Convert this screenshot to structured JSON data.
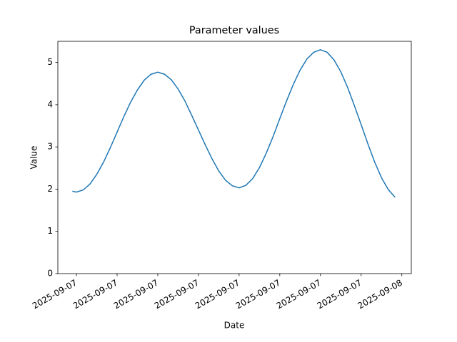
{
  "chart_data": {
    "type": "line",
    "title": "Parameter values",
    "x_label": "Date",
    "y_label": "Value",
    "x": [
      -0.3,
      0,
      0.5,
      1,
      1.5,
      2,
      2.5,
      3,
      3.5,
      4,
      4.5,
      5,
      5.5,
      6,
      6.5,
      7,
      7.5,
      8,
      8.5,
      9,
      9.5,
      10,
      10.5,
      11,
      11.5,
      12,
      12.5,
      13,
      13.5,
      14,
      14.5,
      15,
      15.5,
      16,
      16.5,
      17,
      17.5,
      18,
      18.5,
      19,
      19.5,
      20,
      20.5,
      21,
      21.5,
      22,
      22.5,
      23,
      23.5
    ],
    "series": [
      {
        "name": "Value",
        "color": "#1f77b4",
        "values": [
          1.95,
          1.93,
          1.98,
          2.12,
          2.35,
          2.64,
          2.98,
          3.35,
          3.72,
          4.06,
          4.35,
          4.58,
          4.72,
          4.77,
          4.72,
          4.59,
          4.37,
          4.09,
          3.75,
          3.4,
          3.05,
          2.72,
          2.43,
          2.21,
          2.08,
          2.03,
          2.09,
          2.25,
          2.51,
          2.85,
          3.24,
          3.67,
          4.09,
          4.48,
          4.82,
          5.08,
          5.24,
          5.3,
          5.24,
          5.06,
          4.78,
          4.41,
          3.98,
          3.53,
          3.07,
          2.64,
          2.27,
          1.99,
          1.81
        ]
      }
    ],
    "xlim": [
      -1.37,
      24.7
    ],
    "ylim": [
      0,
      5.5
    ],
    "xticks": [
      {
        "value": 0,
        "label": "2025-09-07"
      },
      {
        "value": 3,
        "label": "2025-09-07"
      },
      {
        "value": 6,
        "label": "2025-09-07"
      },
      {
        "value": 9,
        "label": "2025-09-07"
      },
      {
        "value": 12,
        "label": "2025-09-07"
      },
      {
        "value": 15,
        "label": "2025-09-07"
      },
      {
        "value": 18,
        "label": "2025-09-07"
      },
      {
        "value": 21,
        "label": "2025-09-07"
      },
      {
        "value": 24,
        "label": "2025-09-08"
      }
    ],
    "yticks": [
      0,
      1,
      2,
      3,
      4,
      5
    ]
  }
}
